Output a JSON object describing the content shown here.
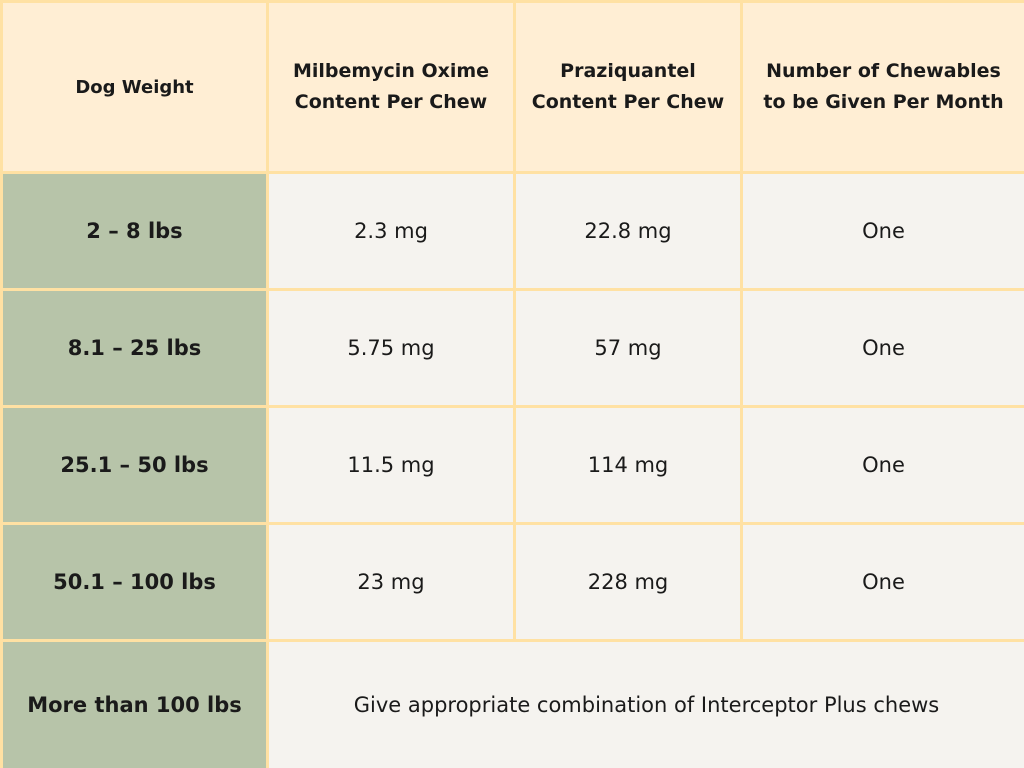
{
  "table": {
    "headers": [
      "Dog Weight",
      "Milbemycin Oxime Content Per Chew",
      "Praziquantel Content Per Chew",
      "Number of Chewables to be Given Per Month"
    ],
    "rows": [
      {
        "weight": "2 – 8 lbs",
        "milbemycin": "2.3 mg",
        "praziquantel": "22.8 mg",
        "count": "One"
      },
      {
        "weight": "8.1 – 25 lbs",
        "milbemycin": "5.75 mg",
        "praziquantel": "57 mg",
        "count": "One"
      },
      {
        "weight": "25.1 – 50 lbs",
        "milbemycin": "11.5 mg",
        "praziquantel": "114 mg",
        "count": "One"
      },
      {
        "weight": "50.1 – 100 lbs",
        "milbemycin": "23 mg",
        "praziquantel": "228 mg",
        "count": "One"
      }
    ],
    "last_row": {
      "weight": "More than 100 lbs",
      "note": "Give appropriate combination of Interceptor Plus chews"
    }
  },
  "colors": {
    "border": "#FFE1A3",
    "header_bg": "#FFEED4",
    "weight_bg": "#B7C4A9",
    "cell_bg": "#F5F3EF"
  }
}
